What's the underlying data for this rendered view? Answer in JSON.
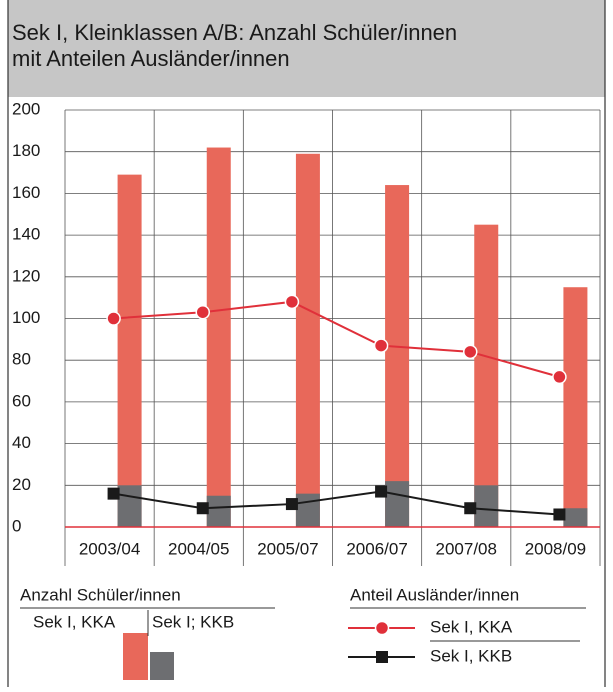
{
  "chart_data": {
    "type": "bar",
    "title": [
      "Sek I, Kleinklassen A/B: Anzahl Schüler/innen",
      "mit Anteilen Ausländer/innen"
    ],
    "categories": [
      "2003/04",
      "2004/05",
      "2005/07",
      "2006/07",
      "2007/08",
      "2008/09"
    ],
    "legend_titles": [
      "Anzahl Schüler/innen",
      "Anteil Ausländer/innen"
    ],
    "series": [
      {
        "name": "Sek I, KKA",
        "mark": "bar",
        "group": 0,
        "color": "#e8685a",
        "values": [
          169,
          182,
          179,
          164,
          145,
          115
        ]
      },
      {
        "name": "Sek I; KKB",
        "mark": "bar",
        "group": 0,
        "color": "#6d6e71",
        "values": [
          20,
          15,
          16,
          22,
          20,
          9
        ]
      },
      {
        "name": "Sek I, KKA",
        "mark": "line",
        "group": 1,
        "color": "#e0303a",
        "values": [
          100,
          103,
          108,
          87,
          84,
          72
        ]
      },
      {
        "name": "Sek I, KKB",
        "mark": "line",
        "group": 1,
        "color": "#1a1a1a",
        "values": [
          16,
          9,
          11,
          17,
          9,
          6
        ]
      }
    ],
    "ylim": [
      0,
      200
    ],
    "yticks": [
      0,
      20,
      40,
      60,
      80,
      100,
      120,
      140,
      160,
      180,
      200
    ],
    "grid": true
  }
}
